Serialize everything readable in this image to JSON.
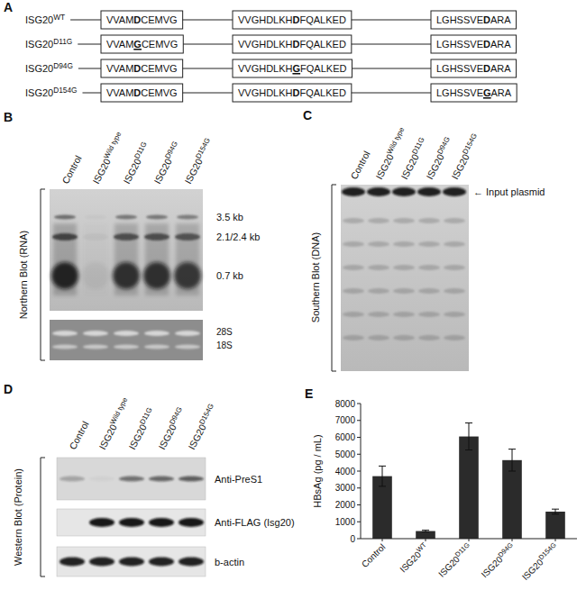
{
  "panel_labels": [
    "A",
    "B",
    "C",
    "D",
    "E"
  ],
  "panel_a": {
    "rows": [
      {
        "label": "ISG20WT",
        "motifs": [
          [
            "VVAM",
            "D",
            "CEMVG"
          ],
          [
            "VVGHDLKH",
            "D",
            "FQALKED"
          ],
          [
            "LGHSSVE",
            "D",
            "ARA"
          ]
        ],
        "mutated": [
          false,
          false,
          false
        ]
      },
      {
        "label": "ISG20D11G",
        "motifs": [
          [
            "VVAM",
            "G",
            "CEMVG"
          ],
          [
            "VVGHDLKH",
            "D",
            "FQALKED"
          ],
          [
            "LGHSSVE",
            "D",
            "ARA"
          ]
        ],
        "mutated": [
          true,
          false,
          false
        ]
      },
      {
        "label": "ISG20D94G",
        "motifs": [
          [
            "VVAM",
            "D",
            "CEMVG"
          ],
          [
            "VVGHDLKH",
            "G",
            "FQALKED"
          ],
          [
            "LGHSSVE",
            "D",
            "ARA"
          ]
        ],
        "mutated": [
          false,
          true,
          false
        ]
      },
      {
        "label": "ISG20D154G",
        "motifs": [
          [
            "VVAM",
            "D",
            "CEMVG"
          ],
          [
            "VVGHDLKH",
            "D",
            "FQALKED"
          ],
          [
            "LGHSSVE",
            "G",
            "ARA"
          ]
        ],
        "mutated": [
          false,
          false,
          true
        ]
      }
    ]
  },
  "panel_b": {
    "side_label": "Northern Blot (RNA)",
    "lanes": [
      "Control",
      "ISG20Wild type",
      "ISG20D11G",
      "ISG20D94G",
      "ISG20D154G"
    ],
    "bands": [
      "3.5 kb",
      "2.1/2.4 kb",
      "0.7 kb"
    ],
    "gel_labels": [
      "28S",
      "18S"
    ]
  },
  "panel_c": {
    "side_label": "Southern Blot (DNA)",
    "lanes": [
      "Control",
      "ISG20Wild type",
      "ISG20D11G",
      "ISG20D94G",
      "ISG20D154G"
    ],
    "annotation": "← Input plasmid"
  },
  "panel_d": {
    "side_label": "Western Blot (Protein)",
    "lanes": [
      "Control",
      "ISG20Wild type",
      "ISG20D11G",
      "ISG20D94G",
      "ISG20D154G"
    ],
    "rows": [
      "Anti-PreS1",
      "Anti-FLAG (Isg20)",
      "b-actin"
    ]
  },
  "chart_data": {
    "type": "bar",
    "ylabel": "HBsAg (pg / mL)",
    "categories": [
      "Control",
      "ISG20WT",
      "ISG20D11G",
      "ISG20D94G",
      "ISG20D154G"
    ],
    "values": [
      3700,
      450,
      6050,
      4650,
      1600
    ],
    "errors": [
      600,
      50,
      800,
      650,
      150
    ],
    "color": "#2b2b2b",
    "ylim": [
      0,
      8000
    ],
    "yticks": [
      0,
      1000,
      2000,
      3000,
      4000,
      5000,
      6000,
      7000,
      8000
    ]
  }
}
